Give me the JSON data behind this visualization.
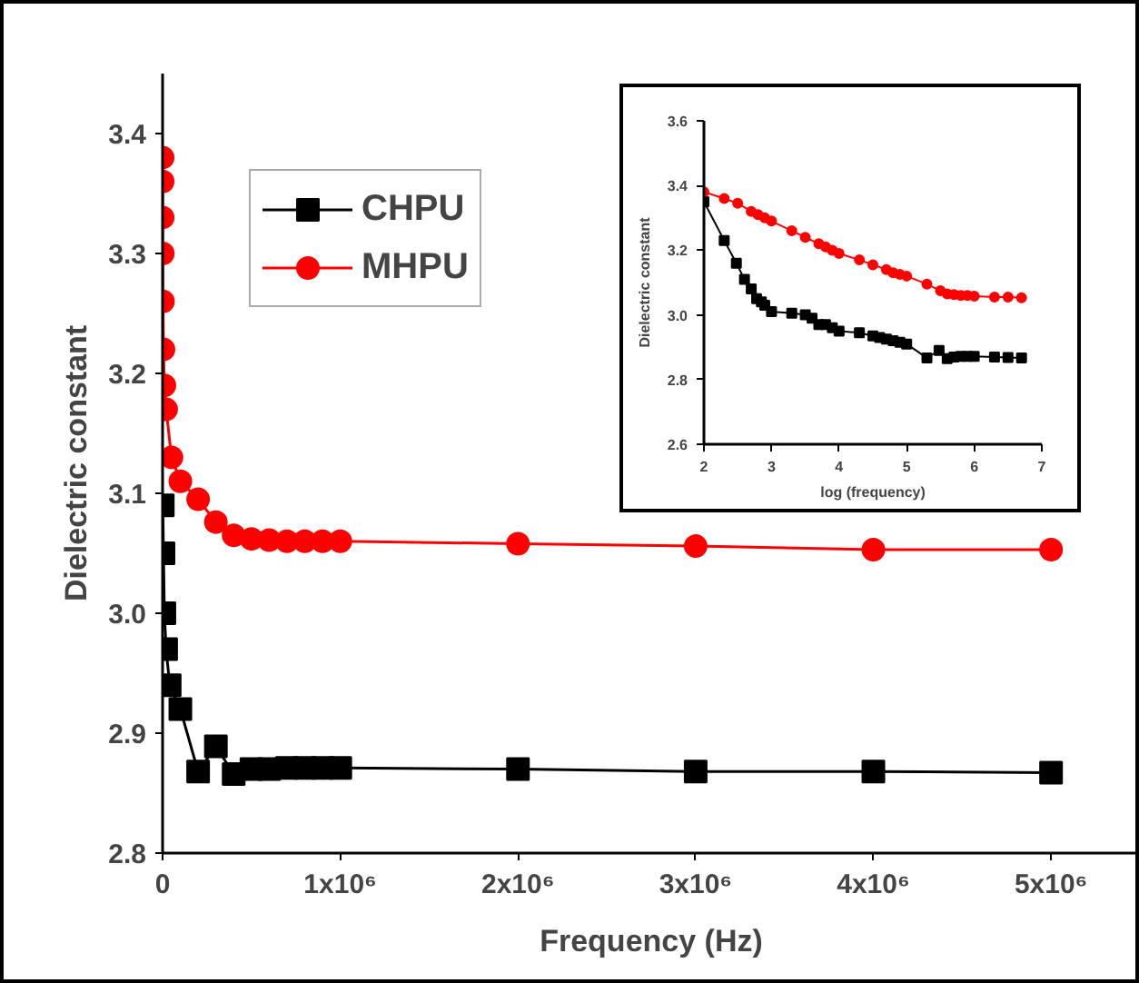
{
  "chart_data": [
    {
      "type": "line",
      "xlabel": "Frequency (Hz)",
      "ylabel": "Dielectric constant",
      "xlim": [
        0,
        5500000
      ],
      "ylim": [
        2.8,
        3.45
      ],
      "xticks": [
        0,
        {
          "value": 1000000,
          "label": "1x10⁶"
        },
        {
          "value": 2000000,
          "label": "2x10⁶"
        },
        {
          "value": 3000000,
          "label": "3x10⁶"
        },
        {
          "value": 4000000,
          "label": "4x10⁶"
        },
        {
          "value": 5000000,
          "label": "5x10⁶"
        }
      ],
      "yticks": [
        2.8,
        2.9,
        {
          "value": 3.0,
          "label": "3.0"
        },
        3.1,
        3.2,
        3.3,
        3.4
      ],
      "grid": false,
      "legend": "top left",
      "line_style": "solid",
      "series": [
        {
          "name": "CHPU",
          "color": "#000000",
          "marker": "square",
          "x": [
            1000,
            5000,
            10000,
            20000,
            40000,
            100000,
            200000,
            300000,
            400000,
            500000,
            600000,
            700000,
            800000,
            900000,
            1000000,
            2000000,
            3000000,
            4000000,
            5000000
          ],
          "values": [
            3.09,
            3.05,
            3.0,
            2.97,
            2.94,
            2.92,
            2.868,
            2.889,
            2.866,
            2.87,
            2.87,
            2.871,
            2.871,
            2.871,
            2.871,
            2.87,
            2.868,
            2.868,
            2.867
          ]
        },
        {
          "name": "MHPU",
          "color": "#ff0000",
          "marker": "circle",
          "x": [
            100,
            200,
            500,
            1000,
            2000,
            5000,
            10000,
            20000,
            50000,
            100000,
            200000,
            300000,
            400000,
            500000,
            600000,
            700000,
            800000,
            900000,
            1000000,
            2000000,
            3000000,
            4000000,
            5000000
          ],
          "values": [
            3.38,
            3.36,
            3.33,
            3.3,
            3.26,
            3.22,
            3.19,
            3.17,
            3.13,
            3.11,
            3.095,
            3.076,
            3.065,
            3.062,
            3.061,
            3.06,
            3.06,
            3.06,
            3.06,
            3.058,
            3.056,
            3.053,
            3.053
          ]
        }
      ]
    },
    {
      "type": "line",
      "xlabel": "log (frequency)",
      "ylabel": "Dielectric constant",
      "xlim": [
        2,
        7
      ],
      "ylim": [
        2.6,
        3.6
      ],
      "xticks": [
        2,
        3,
        4,
        5,
        6,
        7
      ],
      "yticks": [
        2.6,
        2.8,
        {
          "value": 3.0,
          "label": "3.0"
        },
        3.2,
        3.4,
        3.6
      ],
      "grid": false,
      "line_style": "solid",
      "series": [
        {
          "color": "#000000",
          "marker": "square",
          "x": [
            2,
            2.3,
            2.48,
            2.6,
            2.7,
            2.78,
            2.85,
            2.9,
            3.0,
            3.3,
            3.5,
            3.6,
            3.7,
            3.8,
            3.9,
            4.0,
            4.3,
            4.5,
            4.6,
            4.7,
            4.8,
            4.9,
            5.0,
            5.3,
            5.48,
            5.6,
            5.7,
            5.8,
            5.9,
            6.0,
            6.3,
            6.5,
            6.7
          ],
          "values": [
            3.35,
            3.23,
            3.16,
            3.11,
            3.08,
            3.05,
            3.04,
            3.03,
            3.01,
            3.005,
            3.0,
            2.99,
            2.97,
            2.97,
            2.96,
            2.95,
            2.945,
            2.935,
            2.93,
            2.925,
            2.92,
            2.915,
            2.91,
            2.867,
            2.89,
            2.865,
            2.87,
            2.872,
            2.872,
            2.872,
            2.87,
            2.868,
            2.867
          ]
        },
        {
          "color": "#ff0000",
          "marker": "circle",
          "x": [
            2,
            2.3,
            2.5,
            2.7,
            2.8,
            2.9,
            3.0,
            3.3,
            3.5,
            3.7,
            3.8,
            3.9,
            4.0,
            4.3,
            4.5,
            4.7,
            4.8,
            4.9,
            5.0,
            5.3,
            5.5,
            5.6,
            5.7,
            5.8,
            5.9,
            6.0,
            6.3,
            6.5,
            6.7
          ],
          "values": [
            3.38,
            3.36,
            3.345,
            3.32,
            3.31,
            3.3,
            3.29,
            3.26,
            3.24,
            3.22,
            3.21,
            3.2,
            3.19,
            3.17,
            3.155,
            3.14,
            3.13,
            3.125,
            3.12,
            3.095,
            3.075,
            3.065,
            3.063,
            3.06,
            3.06,
            3.058,
            3.055,
            3.055,
            3.053
          ]
        }
      ]
    }
  ]
}
